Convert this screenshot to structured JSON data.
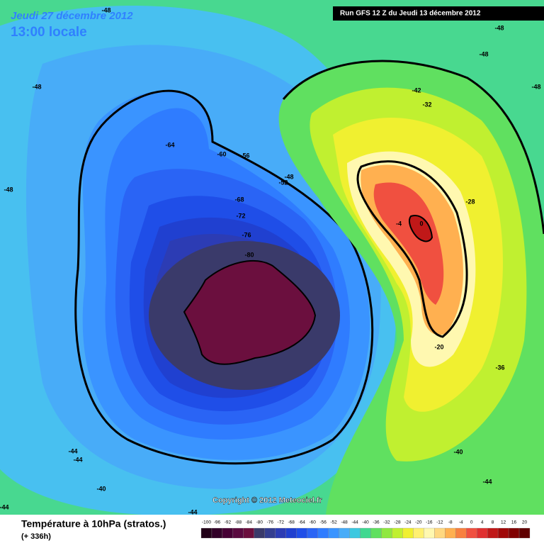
{
  "header": {
    "date": "Jeudi 27 décembre 2012",
    "time": "13:00 locale",
    "run": "Run GFS 12 Z du Jeudi 13 décembre 2012"
  },
  "copyright": "Copyright © 2012 Meteociel.fr",
  "footer": {
    "title": "Température à 10hPa (stratos.)",
    "lead": "(+ 336h)"
  },
  "map": {
    "labels": [
      -48,
      -48,
      -48,
      -48,
      -48,
      -48,
      -64,
      -60,
      -56,
      -52,
      -48,
      -68,
      -72,
      -76,
      -80,
      -42,
      -32,
      -28,
      -20,
      -36,
      -40,
      -44,
      -44,
      -44,
      -40,
      -44,
      -44,
      0,
      -4
    ]
  },
  "legend": {
    "stops": [
      {
        "value": -100,
        "color": "#220018"
      },
      {
        "value": -96,
        "color": "#320028"
      },
      {
        "value": -92,
        "color": "#460035"
      },
      {
        "value": -88,
        "color": "#5a0a40"
      },
      {
        "value": -84,
        "color": "#6b0f3e"
      },
      {
        "value": -80,
        "color": "#3a3a6a"
      },
      {
        "value": -76,
        "color": "#343e90"
      },
      {
        "value": -72,
        "color": "#2c3cb4"
      },
      {
        "value": -68,
        "color": "#2040d0"
      },
      {
        "value": -64,
        "color": "#1f4ee8"
      },
      {
        "value": -60,
        "color": "#2a64f5"
      },
      {
        "value": -56,
        "color": "#2f7cff"
      },
      {
        "value": -52,
        "color": "#3a94ff"
      },
      {
        "value": -48,
        "color": "#48acf8"
      },
      {
        "value": -44,
        "color": "#3cc8e0"
      },
      {
        "value": -40,
        "color": "#40d890"
      },
      {
        "value": -36,
        "color": "#60e060"
      },
      {
        "value": -32,
        "color": "#90e840"
      },
      {
        "value": -28,
        "color": "#c0f030"
      },
      {
        "value": -24,
        "color": "#f0f030"
      },
      {
        "value": -20,
        "color": "#fff070"
      },
      {
        "value": -16,
        "color": "#fff8b0"
      },
      {
        "value": -12,
        "color": "#ffd880"
      },
      {
        "value": -8,
        "color": "#ffb050"
      },
      {
        "value": -4,
        "color": "#f88040"
      },
      {
        "value": 0,
        "color": "#f05040"
      },
      {
        "value": 4,
        "color": "#e03030"
      },
      {
        "value": 8,
        "color": "#c01818"
      },
      {
        "value": 12,
        "color": "#a00808"
      },
      {
        "value": 16,
        "color": "#800000"
      },
      {
        "value": 20,
        "color": "#600000"
      }
    ]
  }
}
